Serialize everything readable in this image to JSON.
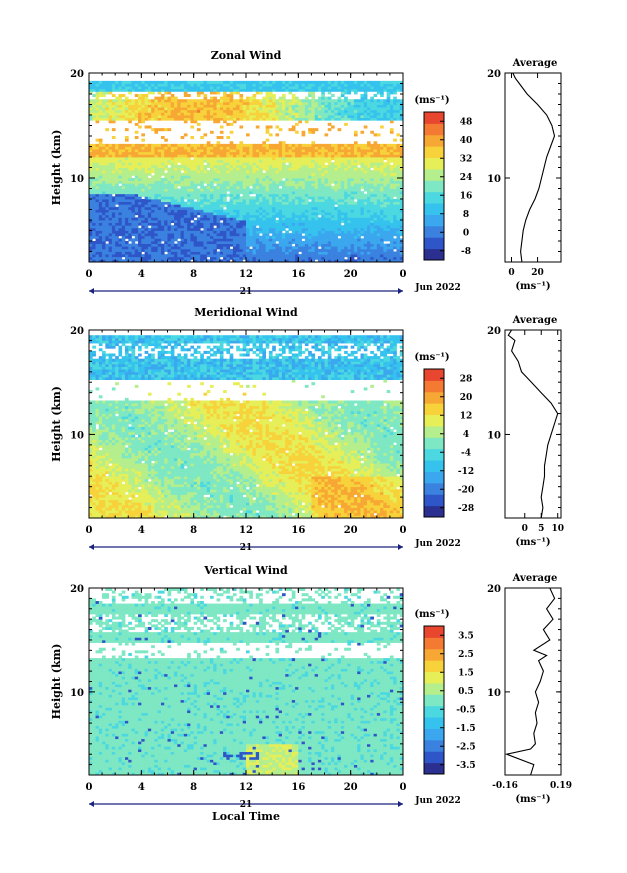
{
  "chart_data": [
    {
      "type": "heatmap",
      "title": "Zonal Wind",
      "ylabel": "Height (km)",
      "xticks": [
        "0",
        "4",
        "8",
        "12",
        "16",
        "20",
        "0"
      ],
      "day_label": "21",
      "date_label": "Jun 2022",
      "ylim": [
        2,
        20
      ],
      "yticks": [
        "10",
        "20"
      ],
      "unit": "(ms⁻¹)",
      "colorbar_ticks": [
        "48",
        "40",
        "32",
        "24",
        "16",
        "8",
        "0",
        "-8"
      ],
      "colorbar_range": [
        -12,
        52
      ],
      "profile": {
        "title": "Average",
        "xticks": [
          "0",
          "20"
        ],
        "xlim": [
          -5,
          38
        ],
        "xlabel": "(ms⁻¹)",
        "yticks": [
          "10",
          "20"
        ],
        "points": [
          [
            8,
            2
          ],
          [
            7,
            3
          ],
          [
            8,
            4
          ],
          [
            9,
            5
          ],
          [
            11,
            6
          ],
          [
            14,
            7
          ],
          [
            18,
            8
          ],
          [
            21,
            9
          ],
          [
            23,
            10
          ],
          [
            25,
            11
          ],
          [
            27,
            12
          ],
          [
            30,
            13
          ],
          [
            33,
            14
          ],
          [
            31,
            15
          ],
          [
            27,
            16
          ],
          [
            20,
            17
          ],
          [
            12,
            18
          ],
          [
            6,
            19
          ],
          [
            3,
            19.5
          ],
          [
            1,
            20
          ]
        ]
      }
    },
    {
      "type": "heatmap",
      "title": "Meridional Wind",
      "ylabel": "Height (km)",
      "xticks": [
        "0",
        "4",
        "8",
        "12",
        "16",
        "20",
        "0"
      ],
      "day_label": "21",
      "date_label": "Jun 2022",
      "ylim": [
        2,
        20
      ],
      "yticks": [
        "10",
        "20"
      ],
      "unit": "(ms⁻¹)",
      "colorbar_ticks": [
        "28",
        "20",
        "12",
        "4",
        "-4",
        "-12",
        "-20",
        "-28"
      ],
      "colorbar_range": [
        -32,
        32
      ],
      "profile": {
        "title": "Average",
        "xticks": [
          "0",
          "5",
          "10"
        ],
        "xlim": [
          -6,
          11
        ],
        "xlabel": "(ms⁻¹)",
        "yticks": [
          "10",
          "20"
        ],
        "points": [
          [
            5,
            2
          ],
          [
            5.5,
            3
          ],
          [
            5,
            4
          ],
          [
            5.5,
            5
          ],
          [
            6,
            6
          ],
          [
            6,
            7
          ],
          [
            6.5,
            8
          ],
          [
            7,
            9
          ],
          [
            8,
            10
          ],
          [
            9,
            11
          ],
          [
            10,
            12
          ],
          [
            8,
            13
          ],
          [
            5,
            14
          ],
          [
            2,
            15
          ],
          [
            -1,
            16
          ],
          [
            -2,
            17
          ],
          [
            -4,
            18
          ],
          [
            -3,
            19
          ],
          [
            -5,
            19.5
          ],
          [
            -4,
            20
          ]
        ]
      }
    },
    {
      "type": "heatmap",
      "title": "Vertical Wind",
      "ylabel": "Height (km)",
      "xlabel": "Local Time",
      "xticks": [
        "0",
        "4",
        "8",
        "12",
        "16",
        "20",
        "0"
      ],
      "day_label": "21",
      "date_label": "Jun 2022",
      "ylim": [
        2,
        20
      ],
      "yticks": [
        "10",
        "20"
      ],
      "unit": "(ms⁻¹)",
      "colorbar_ticks": [
        "3.5",
        "2.5",
        "1.5",
        "0.5",
        "-0.5",
        "-1.5",
        "-2.5",
        "-3.5"
      ],
      "colorbar_range": [
        -4,
        4
      ],
      "profile": {
        "title": "Average",
        "xticks": [
          "-0.16",
          "0.19"
        ],
        "xlim": [
          -0.16,
          0.19
        ],
        "xlabel": "(ms⁻¹)",
        "yticks": [
          "10",
          "20"
        ],
        "points": [
          [
            0.0,
            2
          ],
          [
            0.02,
            3
          ],
          [
            -0.15,
            4
          ],
          [
            0.0,
            4.5
          ],
          [
            0.03,
            5
          ],
          [
            0.02,
            6
          ],
          [
            0.04,
            7
          ],
          [
            0.03,
            8
          ],
          [
            0.05,
            9
          ],
          [
            0.03,
            10
          ],
          [
            0.06,
            11
          ],
          [
            0.08,
            12
          ],
          [
            0.05,
            13
          ],
          [
            0.1,
            13.5
          ],
          [
            0.02,
            14
          ],
          [
            0.12,
            15
          ],
          [
            0.08,
            16
          ],
          [
            0.14,
            17
          ],
          [
            0.1,
            18
          ],
          [
            0.15,
            19
          ],
          [
            0.12,
            20
          ]
        ]
      }
    }
  ]
}
